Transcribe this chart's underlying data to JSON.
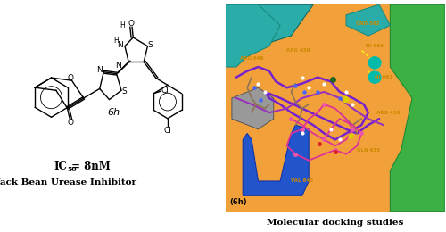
{
  "figsize": [
    5.0,
    2.6
  ],
  "dpi": 100,
  "bg_color": "#ffffff",
  "left": {
    "ic50_bold": "IC",
    "ic50_sub": "50",
    "ic50_val": " = 8nM",
    "inhibitor": "Jack Bean Urease Inhibitor",
    "compound": "6h",
    "lw": 1.0,
    "color": "black"
  },
  "right": {
    "bg": "#F2A13A",
    "caption": "Molecular docking studies",
    "sublabel": "(6h)",
    "orange": "#F2A13A",
    "green": "#3CB043",
    "teal": "#2AADA8",
    "blue": "#2255CC",
    "gray": "#888888",
    "purple": "#8833CC",
    "pink": "#DD44AA",
    "cyan_ni": "#00BBAA"
  }
}
